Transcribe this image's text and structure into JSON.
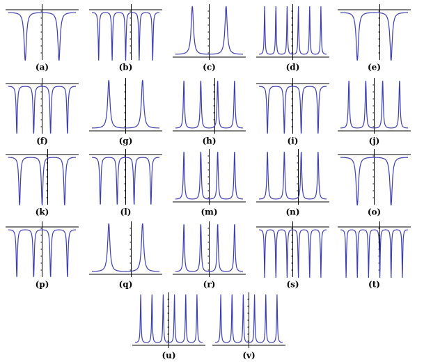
{
  "panels": [
    {
      "label": "(a)",
      "shape": "down",
      "spikes": 2
    },
    {
      "label": "(b)",
      "shape": "down",
      "spikes": 5
    },
    {
      "label": "(c)",
      "shape": "up",
      "spikes": 2
    },
    {
      "label": "(d)",
      "shape": "up",
      "spikes": 6
    },
    {
      "label": "(e)",
      "shape": "down",
      "spikes": 2
    },
    {
      "label": "(f)",
      "shape": "down",
      "spikes": 4
    },
    {
      "label": "(g)",
      "shape": "up",
      "spikes": 2
    },
    {
      "label": "(h)",
      "shape": "up",
      "spikes": 4
    },
    {
      "label": "(i)",
      "shape": "down",
      "spikes": 4
    },
    {
      "label": "(j)",
      "shape": "up",
      "spikes": 4
    },
    {
      "label": "(k)",
      "shape": "down",
      "spikes": 3
    },
    {
      "label": "(l)",
      "shape": "down",
      "spikes": 4
    },
    {
      "label": "(m)",
      "shape": "up",
      "spikes": 4
    },
    {
      "label": "(n)",
      "shape": "up",
      "spikes": 4
    },
    {
      "label": "(o)",
      "shape": "down",
      "spikes": 2
    },
    {
      "label": "(p)",
      "shape": "down",
      "spikes": 4
    },
    {
      "label": "(q)",
      "shape": "up",
      "spikes": 2
    },
    {
      "label": "(r)",
      "shape": "up",
      "spikes": 4
    },
    {
      "label": "(s)",
      "shape": "down",
      "spikes": 6
    },
    {
      "label": "(t)",
      "shape": "down",
      "spikes": 6
    },
    {
      "label": "(u)",
      "shape": "up",
      "spikes": 6
    },
    {
      "label": "(v)",
      "shape": "up",
      "spikes": 6
    }
  ]
}
